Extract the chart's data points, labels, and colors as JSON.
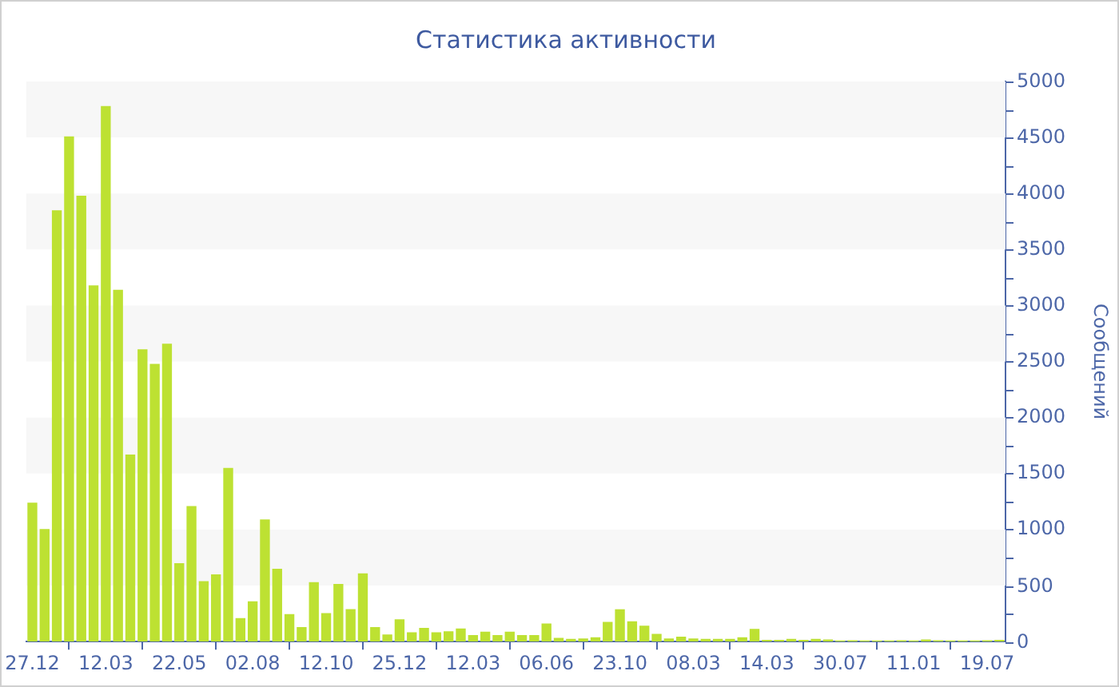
{
  "chart_data": {
    "type": "bar",
    "title": "Статистика активности",
    "ylabel": "Сообщений",
    "categories": [
      "27.12",
      null,
      null,
      null,
      null,
      null,
      "12.03",
      null,
      null,
      null,
      null,
      null,
      "22.05",
      null,
      null,
      null,
      null,
      null,
      "02.08",
      null,
      null,
      null,
      null,
      null,
      "12.10",
      null,
      null,
      null,
      null,
      null,
      "25.12",
      null,
      null,
      null,
      null,
      null,
      "12.03",
      null,
      null,
      null,
      null,
      null,
      "06.06",
      null,
      null,
      null,
      null,
      null,
      "23.10",
      null,
      null,
      null,
      null,
      null,
      "08.03",
      null,
      null,
      null,
      null,
      null,
      "14.03",
      null,
      null,
      null,
      null,
      null,
      "30.07",
      null,
      null,
      null,
      null,
      null,
      "11.01",
      null,
      null,
      null,
      null,
      null,
      "19.07",
      null
    ],
    "values": [
      1240,
      1005,
      3850,
      4510,
      3980,
      3180,
      4780,
      3140,
      1670,
      2610,
      2480,
      2660,
      700,
      1210,
      540,
      600,
      1550,
      210,
      360,
      1090,
      650,
      245,
      130,
      530,
      255,
      515,
      290,
      610,
      130,
      64,
      200,
      83,
      123,
      83,
      93,
      118,
      59,
      88,
      59,
      88,
      59,
      59,
      162,
      34,
      25,
      29,
      39,
      176,
      289,
      181,
      142,
      69,
      29,
      44,
      29,
      25,
      25,
      25,
      39,
      113,
      15,
      15,
      25,
      15,
      25,
      20,
      10,
      12,
      10,
      10,
      10,
      12,
      10,
      20,
      12,
      10,
      10,
      10,
      12,
      15
    ],
    "color": "#bde132",
    "ylim": [
      0,
      5000
    ],
    "yticks": [
      0,
      {
        "value": 250,
        "label": null
      },
      500,
      {
        "value": 750,
        "label": null
      },
      1000,
      {
        "value": 1250,
        "label": null
      },
      1500,
      {
        "value": 1750,
        "label": null
      },
      2000,
      {
        "value": 2250,
        "label": null
      },
      2500,
      {
        "value": 2750,
        "label": null
      },
      3000,
      {
        "value": 3250,
        "label": null
      },
      3500,
      {
        "value": 3750,
        "label": null
      },
      4000,
      {
        "value": 4250,
        "label": null
      },
      4500,
      {
        "value": 4750,
        "label": null
      },
      5000
    ],
    "bands": [
      {
        "axis": "y",
        "from": 500,
        "to": 1000,
        "color": "#f7f7f7"
      },
      {
        "axis": "y",
        "from": 1500,
        "to": 2000,
        "color": "#f7f7f7"
      },
      {
        "axis": "y",
        "from": 2500,
        "to": 3000,
        "color": "#f7f7f7"
      },
      {
        "axis": "y",
        "from": 3500,
        "to": 4000,
        "color": "#f7f7f7"
      },
      {
        "axis": "y",
        "from": 4500,
        "to": 5000,
        "color": "#f7f7f7"
      }
    ],
    "legend": false
  }
}
